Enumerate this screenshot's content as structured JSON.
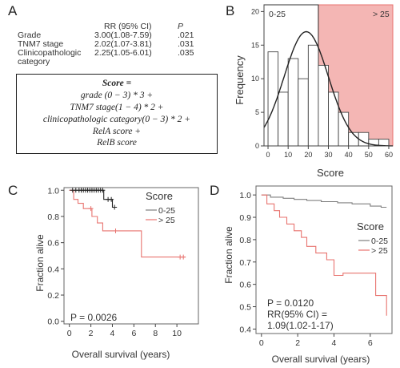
{
  "panel_a": {
    "letter": "A",
    "header": {
      "rr": "RR (95% CI)",
      "p": "P"
    },
    "rows": [
      {
        "name": "Grade",
        "rr": "3.00(1.08-7.59)",
        "p": ".021"
      },
      {
        "name": "TNM7 stage",
        "rr": "2.02(1.07-3.81)",
        "p": ".031"
      },
      {
        "name": "Clinicopathologic",
        "name2": "category",
        "rr": "2.25(1.05-6.01)",
        "p": ".035"
      }
    ],
    "formula": {
      "title": "Score =",
      "lines": [
        "grade (0 − 3) * 3 +",
        "TNM7 stage(1 − 4) * 2 +",
        "clinicopathologic category(0 − 3) * 2 +",
        "RelA score +",
        "RelB score"
      ]
    }
  },
  "panel_b": {
    "letter": "B"
  },
  "panel_c": {
    "letter": "C"
  },
  "panel_d": {
    "letter": "D"
  },
  "colors": {
    "high_fill": "#f4b6b4",
    "high_line": "#e8736f",
    "low_line": "#7f7f7f",
    "black": "#222222"
  },
  "chart_data": [
    {
      "id": "B",
      "type": "bar",
      "xlabel": "Score",
      "ylabel": "Frequency",
      "xlim": [
        -2,
        62
      ],
      "ylim": [
        0,
        21
      ],
      "xticks": [
        0,
        10,
        20,
        30,
        40,
        50,
        60
      ],
      "yticks": [
        0,
        5,
        10,
        15,
        20
      ],
      "bin_width": 5,
      "bins": [
        {
          "start": 0,
          "count": 14
        },
        {
          "start": 5,
          "count": 8
        },
        {
          "start": 10,
          "count": 13
        },
        {
          "start": 15,
          "count": 10
        },
        {
          "start": 20,
          "count": 15
        },
        {
          "start": 25,
          "count": 12
        },
        {
          "start": 30,
          "count": 8
        },
        {
          "start": 35,
          "count": 5
        },
        {
          "start": 40,
          "count": 2
        },
        {
          "start": 45,
          "count": 2
        },
        {
          "start": 50,
          "count": 1
        },
        {
          "start": 55,
          "count": 1
        }
      ],
      "region_low": {
        "label": "0-25",
        "from": -2,
        "to": 25
      },
      "region_high": {
        "label": "> 25",
        "from": 25,
        "to": 62
      },
      "curve": {
        "mean": 19,
        "sd": 11,
        "peak": 17
      }
    },
    {
      "id": "C",
      "type": "line",
      "xlabel": "Overall survival (years)",
      "ylabel": "Fraction alive",
      "xlim": [
        -0.5,
        12
      ],
      "ylim": [
        -0.02,
        1.02
      ],
      "xticks": [
        0,
        2,
        4,
        6,
        8,
        10
      ],
      "yticks": [
        0.0,
        0.2,
        0.4,
        0.6,
        0.8,
        1.0
      ],
      "legend_title": "Score",
      "annotation": "P = 0.0026",
      "series": [
        {
          "name": "0-25",
          "color": "#222222",
          "steps": [
            [
              0,
              1.0
            ],
            [
              3.2,
              1.0
            ],
            [
              3.2,
              0.93
            ],
            [
              4.0,
              0.93
            ],
            [
              4.0,
              0.87
            ],
            [
              4.3,
              0.87
            ]
          ],
          "censor": [
            0.3,
            0.6,
            0.9,
            1.1,
            1.3,
            1.5,
            1.7,
            1.9,
            2.1,
            2.3,
            2.5,
            2.7,
            2.9,
            3.1,
            3.6,
            3.9,
            4.2
          ],
          "censor_y": [
            1.0,
            1.0,
            1.0,
            1.0,
            1.0,
            1.0,
            1.0,
            1.0,
            1.0,
            1.0,
            1.0,
            1.0,
            1.0,
            1.0,
            0.93,
            0.93,
            0.87
          ]
        },
        {
          "name": "> 25",
          "color": "#e8736f",
          "steps": [
            [
              0,
              1.0
            ],
            [
              0.4,
              1.0
            ],
            [
              0.4,
              0.93
            ],
            [
              0.8,
              0.93
            ],
            [
              0.8,
              0.9
            ],
            [
              1.3,
              0.9
            ],
            [
              1.3,
              0.86
            ],
            [
              2.1,
              0.86
            ],
            [
              2.1,
              0.8
            ],
            [
              2.6,
              0.8
            ],
            [
              2.6,
              0.75
            ],
            [
              3.1,
              0.75
            ],
            [
              3.1,
              0.69
            ],
            [
              6.7,
              0.69
            ],
            [
              6.7,
              0.49
            ],
            [
              10.8,
              0.49
            ]
          ],
          "censor": [
            2.0,
            4.3,
            10.3,
            10.6
          ],
          "censor_y": [
            0.86,
            0.69,
            0.49,
            0.49
          ]
        }
      ]
    },
    {
      "id": "D",
      "type": "line",
      "xlabel": "Overall survival (years)",
      "ylabel": "Fraction alive",
      "xlim": [
        -0.3,
        7.2
      ],
      "ylim": [
        0.38,
        1.04
      ],
      "xticks": [
        0,
        2,
        4,
        6
      ],
      "yticks": [
        0.4,
        0.5,
        0.6,
        0.7,
        0.8,
        0.9,
        1.0
      ],
      "legend_title": "Score",
      "annotation_lines": [
        "P = 0.0120",
        "RR(95% CI) =",
        "1.09(1.02-1-17)"
      ],
      "series": [
        {
          "name": "0-25",
          "color": "#7f7f7f",
          "steps": [
            [
              0,
              1.0
            ],
            [
              0.5,
              1.0
            ],
            [
              0.5,
              0.99
            ],
            [
              1.2,
              0.99
            ],
            [
              1.2,
              0.985
            ],
            [
              1.8,
              0.985
            ],
            [
              1.8,
              0.98
            ],
            [
              2.5,
              0.98
            ],
            [
              2.5,
              0.975
            ],
            [
              3.3,
              0.975
            ],
            [
              3.3,
              0.97
            ],
            [
              4.2,
              0.97
            ],
            [
              4.2,
              0.965
            ],
            [
              5.0,
              0.965
            ],
            [
              5.0,
              0.96
            ],
            [
              6.0,
              0.96
            ],
            [
              6.0,
              0.95
            ],
            [
              6.6,
              0.95
            ],
            [
              6.6,
              0.945
            ],
            [
              6.9,
              0.945
            ]
          ]
        },
        {
          "name": "> 25",
          "color": "#e8736f",
          "steps": [
            [
              0,
              1.0
            ],
            [
              0.3,
              1.0
            ],
            [
              0.3,
              0.96
            ],
            [
              0.7,
              0.96
            ],
            [
              0.7,
              0.93
            ],
            [
              1.0,
              0.93
            ],
            [
              1.0,
              0.9
            ],
            [
              1.4,
              0.9
            ],
            [
              1.4,
              0.87
            ],
            [
              1.8,
              0.87
            ],
            [
              1.8,
              0.84
            ],
            [
              2.2,
              0.84
            ],
            [
              2.2,
              0.81
            ],
            [
              2.5,
              0.81
            ],
            [
              2.5,
              0.77
            ],
            [
              3.0,
              0.77
            ],
            [
              3.0,
              0.74
            ],
            [
              3.6,
              0.74
            ],
            [
              3.6,
              0.71
            ],
            [
              4.0,
              0.71
            ],
            [
              4.0,
              0.64
            ],
            [
              4.5,
              0.64
            ],
            [
              4.5,
              0.65
            ],
            [
              6.3,
              0.65
            ],
            [
              6.3,
              0.55
            ],
            [
              6.9,
              0.55
            ],
            [
              6.9,
              0.46
            ]
          ]
        }
      ]
    }
  ]
}
